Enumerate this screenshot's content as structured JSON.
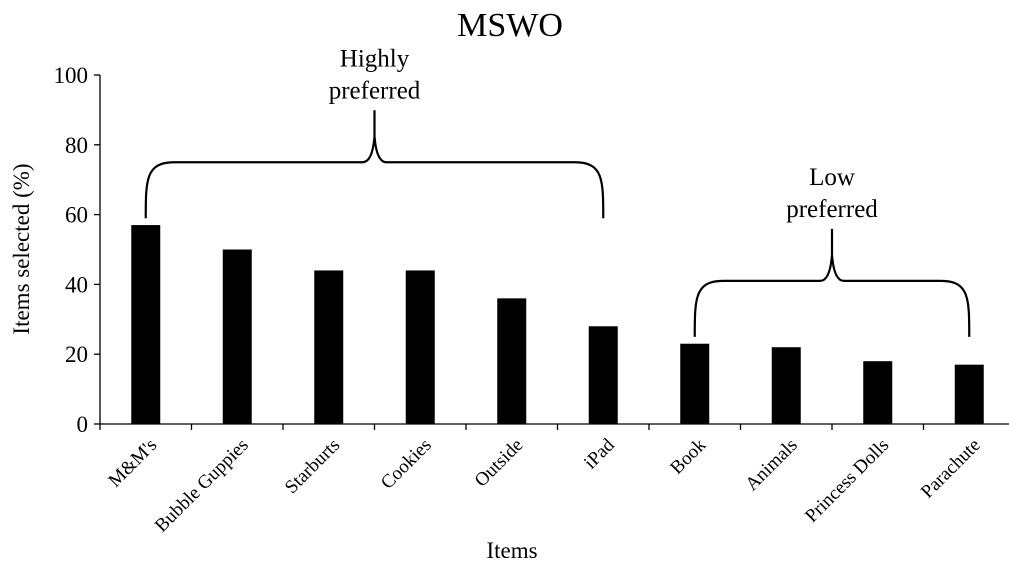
{
  "chart_data": {
    "type": "bar",
    "title": "MSWO",
    "xlabel": "Items",
    "ylabel": "Items selected (%)",
    "ylim": [
      0,
      100
    ],
    "yticks": [
      0,
      20,
      40,
      60,
      80,
      100
    ],
    "grid": false,
    "categories": [
      "M&M's",
      "Bubble Guppies",
      "Starburts",
      "Cookies",
      "Outside",
      "iPad",
      "Book",
      "Animals",
      "Princess Dolls",
      "Parachute"
    ],
    "values": [
      57,
      50,
      44,
      44,
      36,
      28,
      23,
      22,
      18,
      17
    ],
    "bar_color": "#000000",
    "annotations": [
      {
        "lines": [
          "Highly",
          "preferred"
        ],
        "from_category": 0,
        "to_category": 5,
        "bracket_at": 75
      },
      {
        "lines": [
          "Low",
          "preferred"
        ],
        "from_category": 6,
        "to_category": 9,
        "bracket_at": 41
      }
    ]
  }
}
